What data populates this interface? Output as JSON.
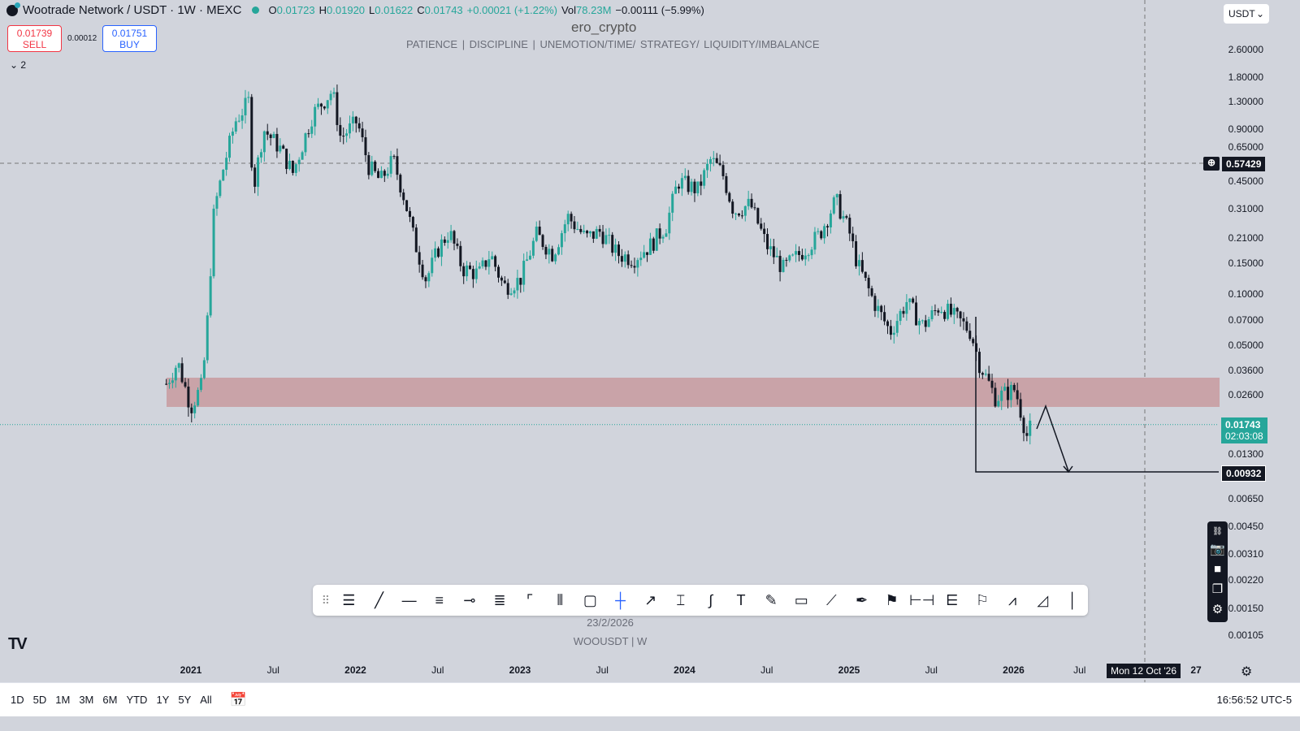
{
  "header": {
    "symbol": "Wootrade Network / USDT · 1W · MEXC",
    "o_label": "O",
    "o": "0.01723",
    "h_label": "H",
    "h": "0.01920",
    "l_label": "L",
    "l": "0.01622",
    "c_label": "C",
    "c": "0.01743",
    "change": "+0.00021 (+1.22%)",
    "vol_label": "Vol",
    "vol": "78.23M",
    "vol_change": "−0.00111 (−5.99%)"
  },
  "trade": {
    "sell_price": "0.01739",
    "sell_label": "SELL",
    "spread": "0.00012",
    "buy_price": "0.01751",
    "buy_label": "BUY"
  },
  "watermark": "ero_crypto",
  "motto": "PATIENCE  |  DISCIPLINE  |  UNEMOTION/TIME/ STRATEGY/ LIQUIDITY/IMBALANCE",
  "legend_toggle": "2",
  "currency": "USDT",
  "price_axis": [
    "2.60000",
    "1.80000",
    "1.30000",
    "0.90000",
    "0.65000",
    "0.45000",
    "0.31000",
    "0.21000",
    "0.15000",
    "0.10000",
    "0.07000",
    "0.05000",
    "0.03600",
    "0.02600",
    "0.01300",
    "0.00650",
    "0.00450",
    "0.00310",
    "0.00220",
    "0.00150",
    "0.00105"
  ],
  "price_tags": {
    "crosshair": "0.57429",
    "last": "0.01743",
    "countdown": "02:03:08",
    "target": "0.00932"
  },
  "time_axis": [
    "2021",
    "Jul",
    "2022",
    "Jul",
    "2023",
    "Jul",
    "2024",
    "Jul",
    "2025",
    "Jul",
    "2026",
    "Jul",
    "27"
  ],
  "crosshair_date": "Mon 12 Oct '26",
  "drawing_date": "23/2/2026",
  "drawing_symbol": "WOOUSDT  |  W",
  "colors": {
    "up": "#26a69a",
    "down": "#131722",
    "zone": "#c9a3a8"
  },
  "price_path": [
    [
      2020.85,
      0.03
    ],
    [
      2020.92,
      0.04
    ],
    [
      2021.0,
      0.022
    ],
    [
      2021.07,
      0.03
    ],
    [
      2021.1,
      0.07
    ],
    [
      2021.14,
      0.3
    ],
    [
      2021.2,
      0.55
    ],
    [
      2021.27,
      1.0
    ],
    [
      2021.35,
      1.3
    ],
    [
      2021.38,
      0.4
    ],
    [
      2021.44,
      0.9
    ],
    [
      2021.54,
      0.7
    ],
    [
      2021.62,
      0.5
    ],
    [
      2021.74,
      1.1
    ],
    [
      2021.86,
      1.5
    ],
    [
      2021.91,
      0.8
    ],
    [
      2022.01,
      1.0
    ],
    [
      2022.08,
      0.55
    ],
    [
      2022.15,
      0.45
    ],
    [
      2022.23,
      0.6
    ],
    [
      2022.3,
      0.35
    ],
    [
      2022.36,
      0.2
    ],
    [
      2022.43,
      0.12
    ],
    [
      2022.5,
      0.18
    ],
    [
      2022.57,
      0.23
    ],
    [
      2022.65,
      0.14
    ],
    [
      2022.75,
      0.13
    ],
    [
      2022.82,
      0.17
    ],
    [
      2022.9,
      0.11
    ],
    [
      2023.0,
      0.12
    ],
    [
      2023.1,
      0.22
    ],
    [
      2023.2,
      0.17
    ],
    [
      2023.29,
      0.28
    ],
    [
      2023.4,
      0.21
    ],
    [
      2023.49,
      0.23
    ],
    [
      2023.59,
      0.17
    ],
    [
      2023.69,
      0.16
    ],
    [
      2023.79,
      0.19
    ],
    [
      2023.89,
      0.25
    ],
    [
      2023.96,
      0.45
    ],
    [
      2024.08,
      0.4
    ],
    [
      2024.16,
      0.6
    ],
    [
      2024.23,
      0.5
    ],
    [
      2024.3,
      0.3
    ],
    [
      2024.4,
      0.33
    ],
    [
      2024.5,
      0.19
    ],
    [
      2024.6,
      0.14
    ],
    [
      2024.7,
      0.17
    ],
    [
      2024.82,
      0.22
    ],
    [
      2024.92,
      0.35
    ],
    [
      2025.0,
      0.23
    ],
    [
      2025.05,
      0.15
    ],
    [
      2025.15,
      0.09
    ],
    [
      2025.25,
      0.06
    ],
    [
      2025.35,
      0.09
    ],
    [
      2025.45,
      0.065
    ],
    [
      2025.55,
      0.085
    ],
    [
      2025.67,
      0.07
    ],
    [
      2025.74,
      0.06
    ],
    [
      2025.79,
      0.04
    ],
    [
      2025.89,
      0.025
    ],
    [
      2026.01,
      0.028
    ],
    [
      2026.08,
      0.015
    ],
    [
      2026.11,
      0.0174
    ]
  ],
  "bottom": {
    "ranges": [
      "1D",
      "5D",
      "1M",
      "3M",
      "6M",
      "YTD",
      "1Y",
      "5Y",
      "All"
    ],
    "clock": "16:56:52 UTC-5"
  }
}
